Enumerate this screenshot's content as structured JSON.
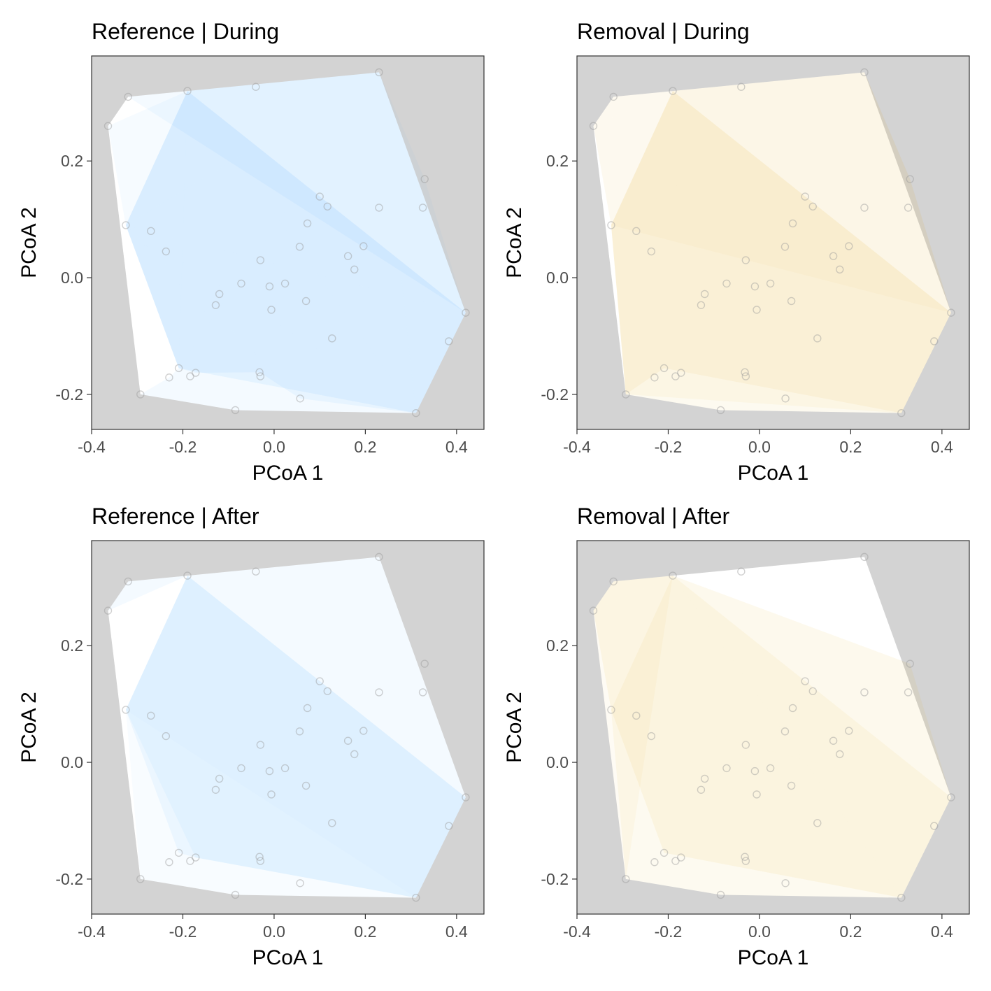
{
  "points": [
    [
      -0.364,
      0.26
    ],
    [
      -0.32,
      0.31
    ],
    [
      -0.19,
      0.32
    ],
    [
      -0.04,
      0.327
    ],
    [
      0.23,
      0.352
    ],
    [
      0.33,
      0.169
    ],
    [
      0.326,
      0.12
    ],
    [
      0.23,
      0.12
    ],
    [
      -0.325,
      0.09
    ],
    [
      -0.27,
      0.08
    ],
    [
      0.1,
      0.139
    ],
    [
      0.117,
      0.122
    ],
    [
      0.073,
      0.093
    ],
    [
      0.056,
      0.053
    ],
    [
      0.196,
      0.054
    ],
    [
      0.162,
      0.037
    ],
    [
      0.176,
      0.014
    ],
    [
      -0.237,
      0.045
    ],
    [
      -0.03,
      0.03
    ],
    [
      -0.072,
      -0.01
    ],
    [
      -0.01,
      -0.015
    ],
    [
      0.024,
      -0.01
    ],
    [
      -0.12,
      -0.028
    ],
    [
      -0.128,
      -0.047
    ],
    [
      -0.006,
      -0.055
    ],
    [
      0.07,
      -0.04
    ],
    [
      0.42,
      -0.06
    ],
    [
      0.383,
      -0.109
    ],
    [
      0.127,
      -0.104
    ],
    [
      -0.209,
      -0.155
    ],
    [
      -0.23,
      -0.171
    ],
    [
      -0.172,
      -0.163
    ],
    [
      -0.184,
      -0.169
    ],
    [
      -0.032,
      -0.162
    ],
    [
      -0.03,
      -0.169
    ],
    [
      -0.293,
      -0.2
    ],
    [
      0.057,
      -0.207
    ],
    [
      -0.085,
      -0.227
    ],
    [
      0.311,
      -0.232
    ]
  ],
  "chart_data": [
    {
      "type": "scatter",
      "title": "Reference | During",
      "xlabel": "PCoA 1",
      "ylabel": "PCoA 2",
      "xlim": [
        -0.4,
        0.46
      ],
      "ylim": [
        -0.26,
        0.38
      ],
      "xticks": [
        -0.4,
        -0.2,
        0.0,
        0.2,
        0.4
      ],
      "xtick_labels": [
        "-0.4",
        "-0.2",
        "0.0",
        "0.2",
        "0.4"
      ],
      "yticks": [
        -0.2,
        0.0,
        0.2
      ],
      "ytick_labels": [
        "-0.2",
        "0.0",
        "0.2"
      ],
      "background": "#d3d3d3",
      "hull_color": "#56b4fc",
      "hull_vertices": [
        0,
        1,
        2,
        4,
        26,
        38,
        37,
        35
      ],
      "fans": [
        {
          "apex": 8,
          "rim": [
            2,
            4,
            26,
            38,
            36,
            33,
            31,
            29
          ],
          "opacity": 0.075
        },
        {
          "apex": 26,
          "rim": [
            1,
            2,
            8,
            29,
            30,
            35,
            37,
            38
          ],
          "opacity": 0.065
        },
        {
          "apex": 2,
          "rim": [
            1,
            4,
            26,
            38,
            29,
            8,
            0
          ],
          "opacity": 0.05
        },
        {
          "apex": 4,
          "rim": [
            2,
            8,
            29,
            38,
            26,
            5
          ],
          "opacity": 0.045
        }
      ]
    },
    {
      "type": "scatter",
      "title": "Removal | During",
      "xlabel": "PCoA 1",
      "ylabel": "PCoA 2",
      "xlim": [
        -0.4,
        0.46
      ],
      "ylim": [
        -0.26,
        0.38
      ],
      "xticks": [
        -0.4,
        -0.2,
        0.0,
        0.2,
        0.4
      ],
      "xtick_labels": [
        "-0.4",
        "-0.2",
        "0.0",
        "0.2",
        "0.4"
      ],
      "yticks": [
        -0.2,
        0.0,
        0.2
      ],
      "ytick_labels": [
        "-0.2",
        "0.0",
        "0.2"
      ],
      "background": "#d3d3d3",
      "hull_color": "#e6b830",
      "hull_vertices": [
        0,
        1,
        2,
        4,
        26,
        38,
        37,
        35
      ],
      "fans": [
        {
          "apex": 2,
          "rim": [
            1,
            0,
            8,
            35,
            29,
            38,
            26,
            5,
            4
          ],
          "opacity": 0.08
        },
        {
          "apex": 26,
          "rim": [
            2,
            8,
            35,
            37,
            38
          ],
          "opacity": 0.07
        },
        {
          "apex": 35,
          "rim": [
            8,
            2,
            26,
            38
          ],
          "opacity": 0.06
        },
        {
          "apex": 4,
          "rim": [
            2,
            8,
            26,
            5
          ],
          "opacity": 0.04
        }
      ]
    },
    {
      "type": "scatter",
      "title": "Reference | After",
      "xlabel": "PCoA 1",
      "ylabel": "PCoA 2",
      "xlim": [
        -0.4,
        0.46
      ],
      "ylim": [
        -0.26,
        0.38
      ],
      "xticks": [
        -0.4,
        -0.2,
        0.0,
        0.2,
        0.4
      ],
      "xtick_labels": [
        "-0.4",
        "-0.2",
        "0.0",
        "0.2",
        "0.4"
      ],
      "yticks": [
        -0.2,
        0.0,
        0.2
      ],
      "ytick_labels": [
        "-0.2",
        "0.0",
        "0.2"
      ],
      "background": "#d3d3d3",
      "hull_color": "#56b4fc",
      "hull_vertices": [
        0,
        1,
        2,
        4,
        26,
        38,
        37,
        35
      ],
      "fans": [
        {
          "apex": 8,
          "rim": [
            2,
            26,
            38,
            31,
            29
          ],
          "opacity": 0.075
        },
        {
          "apex": 2,
          "rim": [
            8,
            38,
            26,
            4,
            1,
            0
          ],
          "opacity": 0.065
        },
        {
          "apex": 26,
          "rim": [
            2,
            8,
            31,
            38
          ],
          "opacity": 0.06
        },
        {
          "apex": 38,
          "rim": [
            8,
            35,
            37
          ],
          "opacity": 0.04
        }
      ]
    },
    {
      "type": "scatter",
      "title": "Removal | After",
      "xlabel": "PCoA 1",
      "ylabel": "PCoA 2",
      "xlim": [
        -0.4,
        0.46
      ],
      "ylim": [
        -0.26,
        0.38
      ],
      "xticks": [
        -0.4,
        -0.2,
        0.0,
        0.2,
        0.4
      ],
      "xtick_labels": [
        "-0.4",
        "-0.2",
        "0.0",
        "0.2",
        "0.4"
      ],
      "yticks": [
        -0.2,
        0.0,
        0.2
      ],
      "ytick_labels": [
        "-0.2",
        "0.0",
        "0.2"
      ],
      "background": "#d3d3d3",
      "hull_color": "#e6b830",
      "hull_vertices": [
        0,
        1,
        2,
        4,
        26,
        38,
        37,
        35
      ],
      "fans": [
        {
          "apex": 2,
          "rim": [
            1,
            0,
            8,
            29,
            38,
            26,
            5
          ],
          "opacity": 0.085
        },
        {
          "apex": 38,
          "rim": [
            8,
            35,
            37
          ],
          "opacity": 0.07
        },
        {
          "apex": 26,
          "rim": [
            2,
            8,
            38
          ],
          "opacity": 0.07
        },
        {
          "apex": 0,
          "rim": [
            1,
            2,
            35
          ],
          "opacity": 0.05
        }
      ]
    }
  ]
}
